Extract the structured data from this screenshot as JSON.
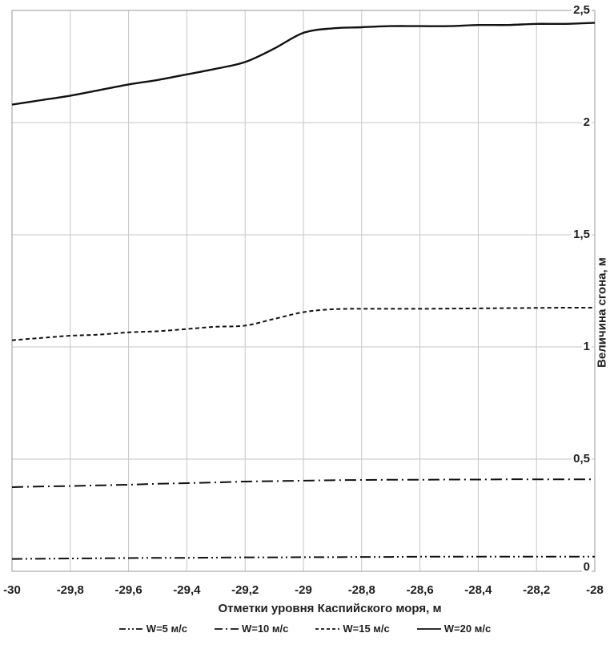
{
  "chart_data": {
    "type": "line",
    "title": "",
    "xlabel": "Отметки уровня Каспийского моря, м",
    "ylabel": "Величина сгона, м",
    "xlim": [
      -30,
      -28
    ],
    "ylim": [
      0,
      2.5
    ],
    "grid": true,
    "legend_position": "bottom",
    "x_tick_labels": [
      "-30",
      "-29,8",
      "-29,6",
      "-29,4",
      "-29,2",
      "-29",
      "-28,8",
      "-28,6",
      "-28,4",
      "-28,2",
      "-28"
    ],
    "x_tick_values": [
      -30,
      -29.8,
      -29.6,
      -29.4,
      -29.2,
      -29,
      -28.8,
      -28.6,
      -28.4,
      -28.2,
      -28
    ],
    "y_tick_labels": [
      "0",
      "0,5",
      "1",
      "1,5",
      "2",
      "2,5"
    ],
    "y_tick_values": [
      0,
      0.5,
      1,
      1.5,
      2,
      2.5
    ],
    "x": [
      -30,
      -29.9,
      -29.8,
      -29.7,
      -29.6,
      -29.5,
      -29.4,
      -29.3,
      -29.2,
      -29.1,
      -29.0,
      -28.9,
      -28.8,
      -28.7,
      -28.6,
      -28.5,
      -28.4,
      -28.3,
      -28.2,
      -28.1,
      -28.0
    ],
    "series": [
      {
        "name": "W=5 м/с",
        "style": "dash-dot-dot",
        "width": 2,
        "values": [
          0.055,
          0.056,
          0.057,
          0.058,
          0.059,
          0.06,
          0.06,
          0.061,
          0.062,
          0.062,
          0.063,
          0.063,
          0.064,
          0.064,
          0.065,
          0.065,
          0.065,
          0.065,
          0.065,
          0.065,
          0.065
        ]
      },
      {
        "name": "W=10 м/с",
        "style": "dash-dot",
        "width": 2,
        "values": [
          0.375,
          0.378,
          0.38,
          0.383,
          0.386,
          0.39,
          0.393,
          0.396,
          0.4,
          0.402,
          0.404,
          0.406,
          0.407,
          0.408,
          0.408,
          0.409,
          0.409,
          0.41,
          0.41,
          0.41,
          0.41
        ]
      },
      {
        "name": "W=15 м/с",
        "style": "dashed",
        "width": 2,
        "values": [
          1.03,
          1.04,
          1.05,
          1.055,
          1.065,
          1.07,
          1.08,
          1.09,
          1.095,
          1.125,
          1.155,
          1.168,
          1.17,
          1.17,
          1.17,
          1.171,
          1.172,
          1.173,
          1.174,
          1.175,
          1.175
        ]
      },
      {
        "name": "W=20 м/с",
        "style": "solid",
        "width": 2.4,
        "values": [
          2.08,
          2.1,
          2.12,
          2.145,
          2.17,
          2.19,
          2.215,
          2.24,
          2.27,
          2.33,
          2.4,
          2.42,
          2.425,
          2.43,
          2.43,
          2.43,
          2.435,
          2.435,
          2.44,
          2.44,
          2.445
        ]
      }
    ],
    "colors": {
      "line": "#111111",
      "grid_inner": "#c6c6c6",
      "grid_border": "#a9a9a9",
      "text": "#1f1f1f",
      "background": "#ffffff"
    }
  }
}
